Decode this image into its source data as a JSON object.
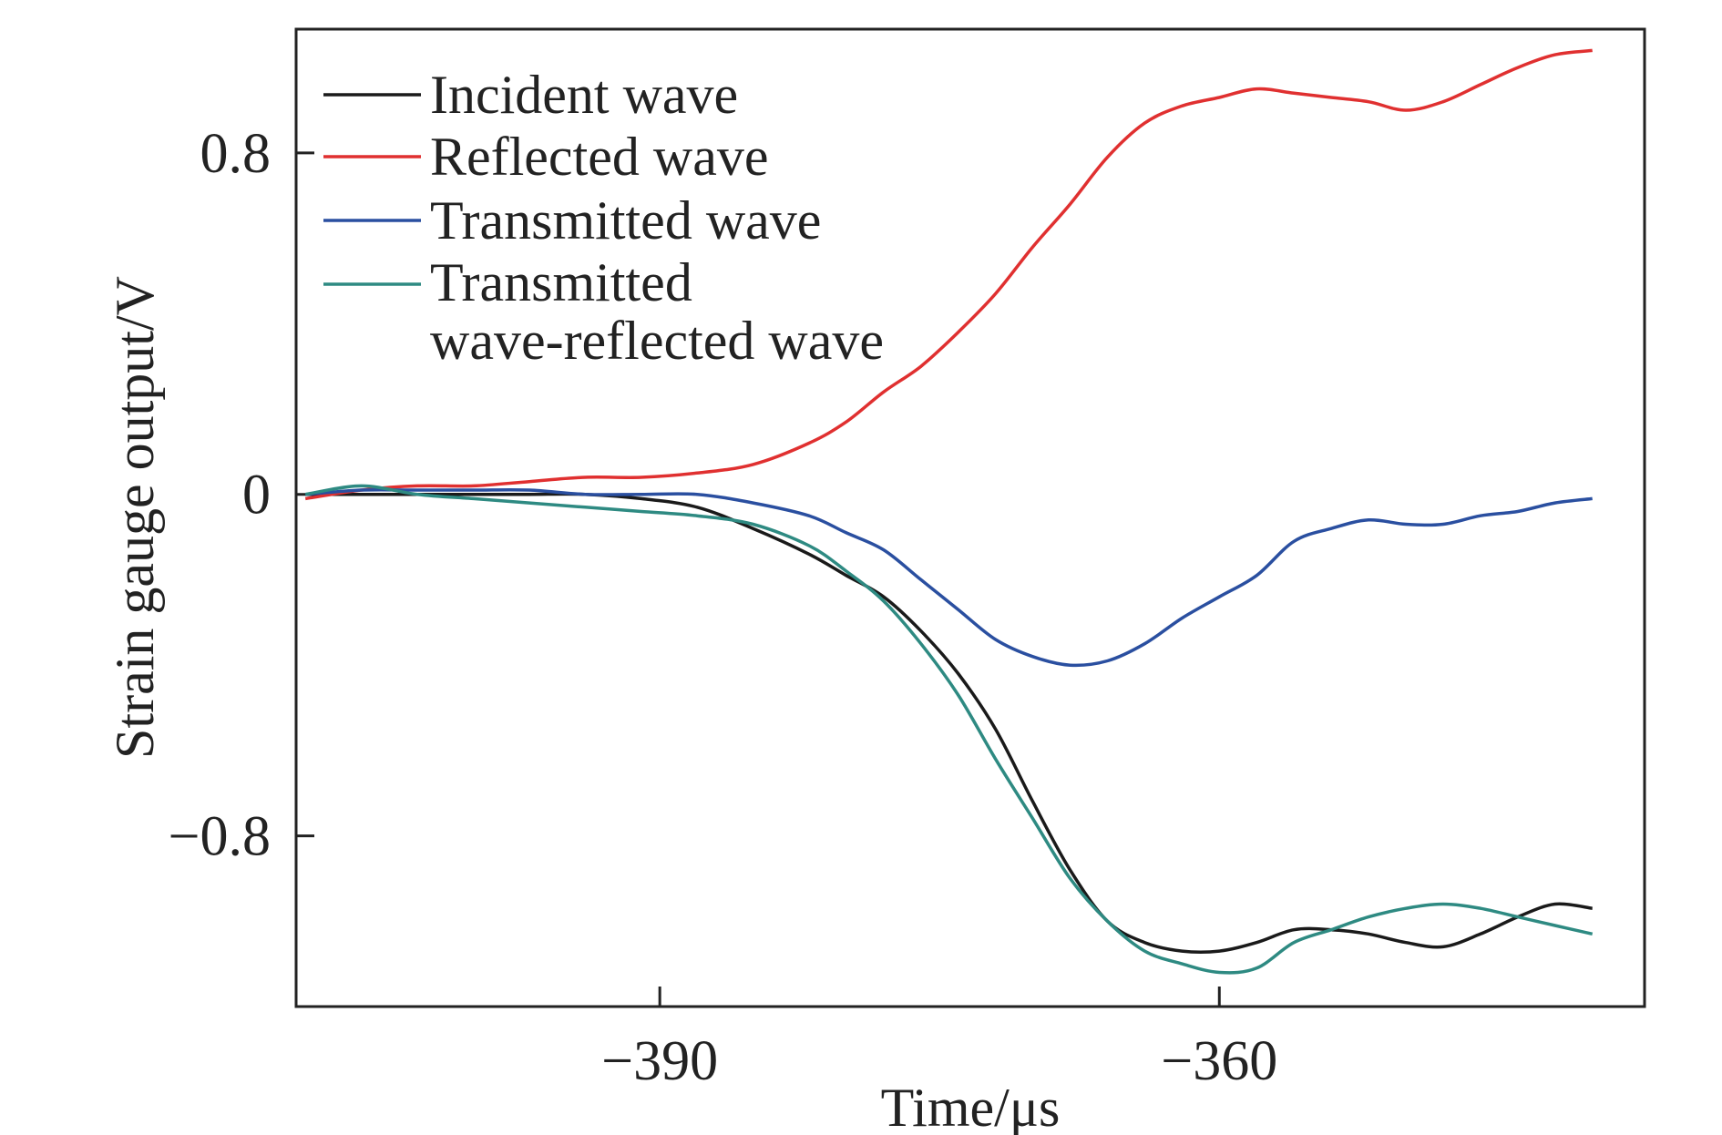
{
  "chart_data": {
    "type": "line",
    "title": "",
    "xlabel": "Time/μs",
    "ylabel": "Strain gauge output/V",
    "xlim": [
      -409.5,
      -337.2
    ],
    "ylim": [
      -1.2,
      1.09
    ],
    "xticks": [
      -390,
      -360
    ],
    "xtick_labels": [
      "−390",
      "−360"
    ],
    "yticks": [
      0.8,
      0,
      -0.8
    ],
    "ytick_labels": [
      "0.8",
      "0",
      "−0.8"
    ],
    "grid": false,
    "legend_position": "top-left",
    "series": [
      {
        "name": "Incident wave",
        "color": "#1a1a1a",
        "x": [
          -409,
          -406,
          -403,
          -400,
          -397,
          -394,
          -391,
          -388,
          -385,
          -382,
          -380,
          -378,
          -376,
          -374,
          -372,
          -370,
          -368,
          -366,
          -364,
          -362,
          -360,
          -358,
          -356,
          -354,
          -352,
          -350,
          -348,
          -346,
          -344,
          -342,
          -340
        ],
        "y": [
          0.0,
          0.0,
          0.0,
          0.0,
          0.0,
          0.0,
          -0.01,
          -0.03,
          -0.08,
          -0.14,
          -0.19,
          -0.24,
          -0.32,
          -0.42,
          -0.55,
          -0.72,
          -0.88,
          -1.0,
          -1.05,
          -1.07,
          -1.07,
          -1.05,
          -1.02,
          -1.02,
          -1.03,
          -1.05,
          -1.06,
          -1.03,
          -0.99,
          -0.96,
          -0.97
        ]
      },
      {
        "name": "Reflected wave",
        "color": "#e03030",
        "x": [
          -409,
          -406,
          -403,
          -400,
          -397,
          -394,
          -391,
          -388,
          -385,
          -382,
          -380,
          -378,
          -376,
          -374,
          -372,
          -370,
          -368,
          -366,
          -364,
          -362,
          -360,
          -358,
          -356,
          -354,
          -352,
          -350,
          -348,
          -346,
          -344,
          -342,
          -340
        ],
        "y": [
          -0.01,
          0.01,
          0.02,
          0.02,
          0.03,
          0.04,
          0.04,
          0.05,
          0.07,
          0.12,
          0.17,
          0.24,
          0.3,
          0.38,
          0.47,
          0.58,
          0.68,
          0.79,
          0.87,
          0.91,
          0.93,
          0.95,
          0.94,
          0.93,
          0.92,
          0.9,
          0.92,
          0.96,
          1.0,
          1.03,
          1.04
        ]
      },
      {
        "name": "Transmitted wave",
        "color": "#2a4fa0",
        "x": [
          -409,
          -406,
          -403,
          -400,
          -397,
          -394,
          -391,
          -388,
          -385,
          -382,
          -380,
          -378,
          -376,
          -374,
          -372,
          -370,
          -368,
          -366,
          -364,
          -362,
          -360,
          -358,
          -356,
          -354,
          -352,
          -350,
          -348,
          -346,
          -344,
          -342,
          -340
        ],
        "y": [
          0.0,
          0.01,
          0.01,
          0.01,
          0.01,
          0.0,
          0.0,
          0.0,
          -0.02,
          -0.05,
          -0.09,
          -0.13,
          -0.2,
          -0.27,
          -0.34,
          -0.38,
          -0.4,
          -0.39,
          -0.35,
          -0.29,
          -0.24,
          -0.19,
          -0.11,
          -0.08,
          -0.06,
          -0.07,
          -0.07,
          -0.05,
          -0.04,
          -0.02,
          -0.01
        ]
      },
      {
        "name": "Transmitted wave-reflected wave",
        "color": "#2e8a82",
        "x": [
          -409,
          -406,
          -403,
          -400,
          -397,
          -394,
          -391,
          -388,
          -385,
          -382,
          -380,
          -378,
          -376,
          -374,
          -372,
          -370,
          -368,
          -366,
          -364,
          -362,
          -360,
          -358,
          -356,
          -354,
          -352,
          -350,
          -348,
          -346,
          -344,
          -342,
          -340
        ],
        "y": [
          0.0,
          0.02,
          0.0,
          -0.01,
          -0.02,
          -0.03,
          -0.04,
          -0.05,
          -0.07,
          -0.12,
          -0.18,
          -0.25,
          -0.35,
          -0.47,
          -0.62,
          -0.76,
          -0.9,
          -1.0,
          -1.07,
          -1.1,
          -1.12,
          -1.11,
          -1.05,
          -1.02,
          -0.99,
          -0.97,
          -0.96,
          -0.97,
          -0.99,
          -1.01,
          -1.03
        ]
      }
    ],
    "legend_entries": [
      "Incident wave",
      "Reflected wave",
      "Transmitted wave",
      "Transmitted",
      "wave-reflected wave"
    ]
  }
}
